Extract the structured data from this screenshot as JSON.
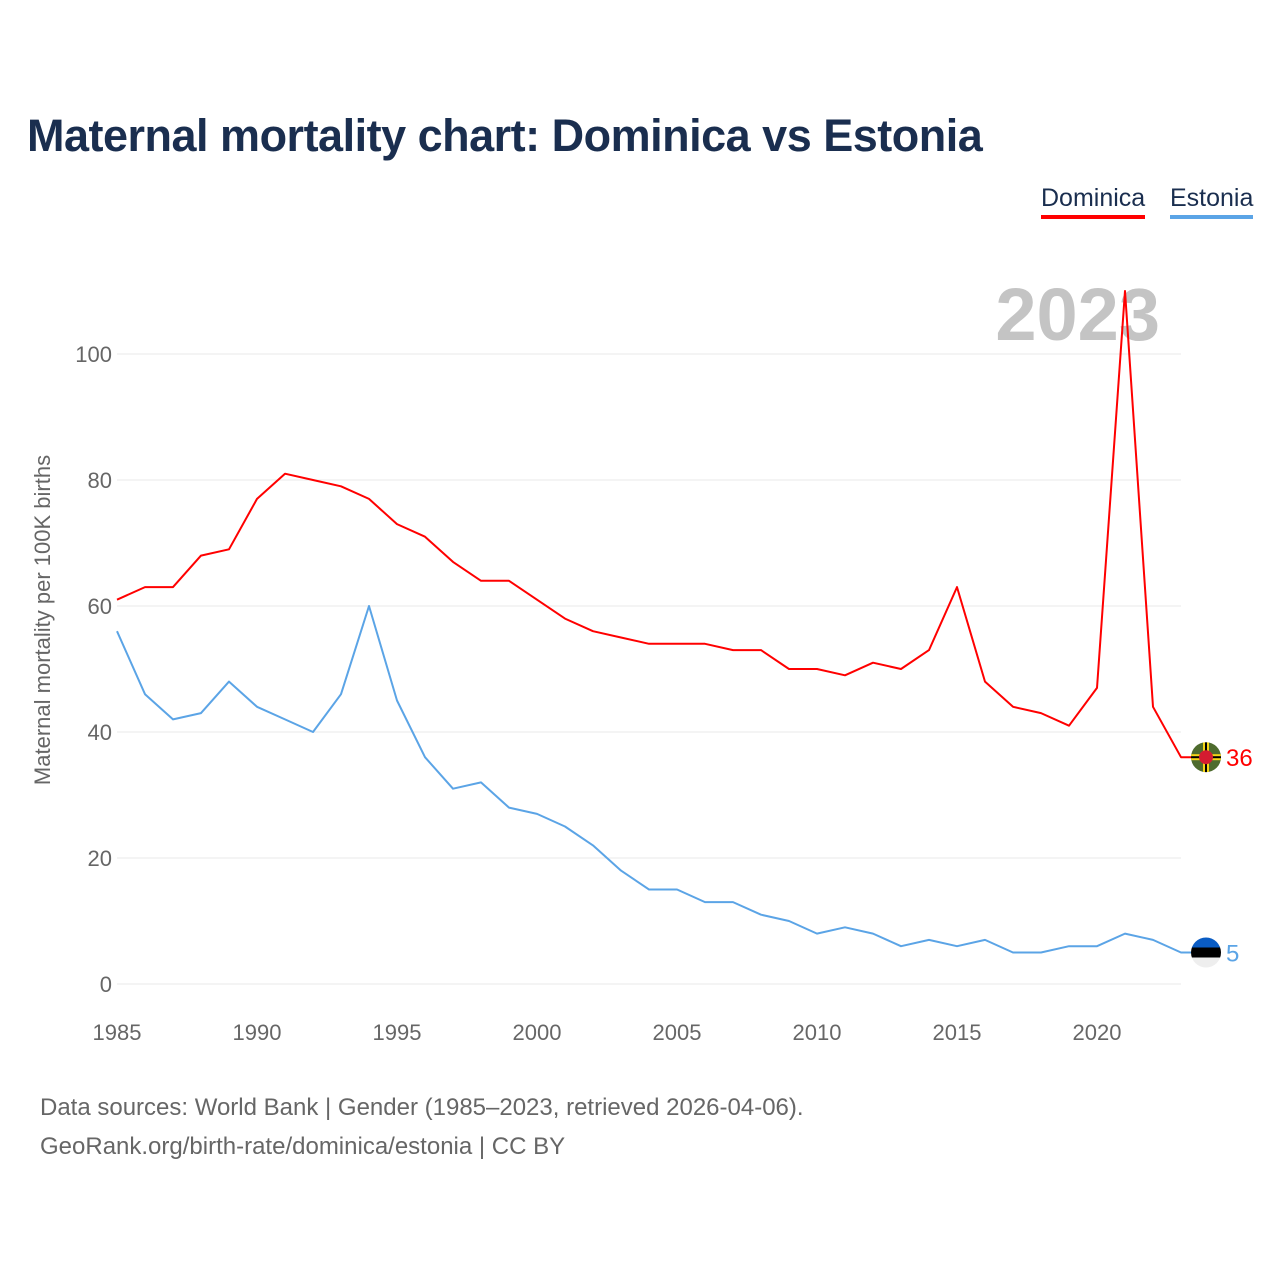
{
  "title": "Maternal mortality chart: Dominica vs Estonia",
  "source_line1": "Data sources: World Bank | Gender (1985–2023, retrieved 2026-04-06).",
  "source_line2": "GeoRank.org/birth-rate/dominica/estonia | CC BY",
  "chart_data": {
    "type": "line",
    "title": "Maternal mortality chart: Dominica vs Estonia",
    "xlabel": "",
    "ylabel": "Maternal mortality per 100K births",
    "year_watermark": "2023",
    "xlim": [
      1985,
      2023
    ],
    "ylim": [
      0,
      110
    ],
    "xticks": [
      1985,
      1990,
      1995,
      2000,
      2005,
      2010,
      2015,
      2020
    ],
    "yticks": [
      0,
      20,
      40,
      60,
      80,
      100
    ],
    "grid": true,
    "legend_position": "top-right",
    "x": [
      1985,
      1986,
      1987,
      1988,
      1989,
      1990,
      1991,
      1992,
      1993,
      1994,
      1995,
      1996,
      1997,
      1998,
      1999,
      2000,
      2001,
      2002,
      2003,
      2004,
      2005,
      2006,
      2007,
      2008,
      2009,
      2010,
      2011,
      2012,
      2013,
      2014,
      2015,
      2016,
      2017,
      2018,
      2019,
      2020,
      2021,
      2022,
      2023
    ],
    "series": [
      {
        "name": "Dominica",
        "color": "#ff0000",
        "end_label": "36",
        "flag": "dominica-flag",
        "values": [
          61,
          63,
          63,
          68,
          69,
          77,
          81,
          80,
          79,
          77,
          73,
          71,
          67,
          64,
          64,
          61,
          58,
          56,
          55,
          54,
          54,
          54,
          53,
          53,
          50,
          50,
          49,
          51,
          50,
          53,
          63,
          48,
          44,
          43,
          41,
          47,
          110,
          44,
          36
        ]
      },
      {
        "name": "Estonia",
        "color": "#5ba4e6",
        "end_label": "5",
        "flag": "estonia-flag",
        "values": [
          56,
          46,
          42,
          43,
          48,
          44,
          42,
          40,
          46,
          60,
          45,
          36,
          31,
          32,
          28,
          27,
          25,
          22,
          18,
          15,
          15,
          13,
          13,
          11,
          10,
          8,
          9,
          8,
          6,
          7,
          6,
          7,
          5,
          5,
          6,
          6,
          8,
          7,
          5
        ]
      }
    ]
  }
}
